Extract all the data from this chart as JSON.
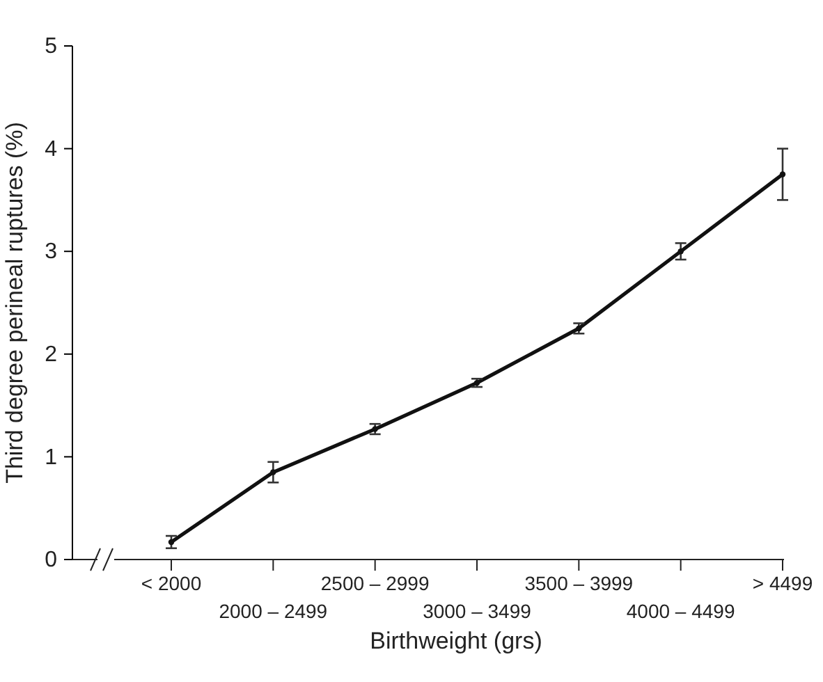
{
  "chart_data": {
    "type": "line",
    "xlabel": "Birthweight (grs)",
    "ylabel": "Third degree perineal ruptures (%)",
    "categories": [
      "< 2000",
      "2000 – 2499",
      "2500 – 2999",
      "3000 – 3499",
      "3500 – 3999",
      "4000 – 4499",
      "> 4499"
    ],
    "series": [
      {
        "color": "#111111",
        "values": [
          0.17,
          0.85,
          1.27,
          1.72,
          2.25,
          3.0,
          3.75
        ],
        "errors": [
          0.06,
          0.1,
          0.05,
          0.04,
          0.05,
          0.08,
          [
            0.25,
            0.25
          ]
        ]
      }
    ],
    "ylim": [
      0,
      5
    ],
    "yticks": [
      0,
      1,
      2,
      3,
      4,
      5
    ],
    "grid": false,
    "marker": "circle",
    "line_style": "solid"
  }
}
